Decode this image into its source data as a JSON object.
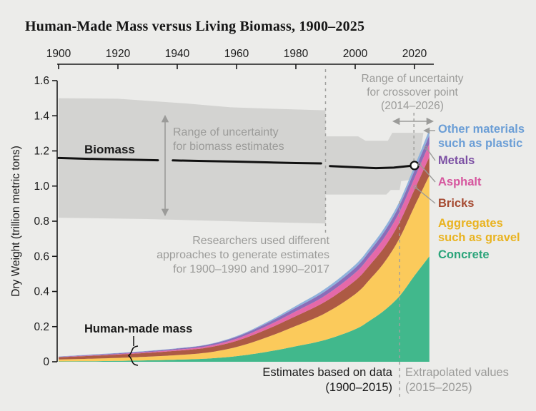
{
  "colors": {
    "background": "#ececea",
    "band_gray": "#d3d3d1",
    "annotation_gray": "#9b9b99",
    "axis_black": "#1a1a1a",
    "dashed_gray": "#a0a09e",
    "leader_gray": "#9b9b99",
    "biomass_line": "#111111",
    "crossover_marker_fill": "#ffffff"
  },
  "chart_data": {
    "type": "area",
    "title": "Human-Made Mass versus Living Biomass, 1900–2025",
    "xlabel": "",
    "ylabel": "Dry Weight (trillion metric tons)",
    "xlim": [
      1900,
      2026
    ],
    "ylim": [
      0,
      1.6
    ],
    "x_ticks": [
      1900,
      1920,
      1940,
      1960,
      1980,
      2000,
      2020
    ],
    "y_ticks": [
      {
        "value": 0,
        "label": "0"
      },
      {
        "value": 0.2,
        "label": "0.2"
      },
      {
        "value": 0.4,
        "label": "0.4"
      },
      {
        "value": 0.6,
        "label": "0.6"
      },
      {
        "value": 0.8,
        "label": "0.8"
      },
      {
        "value": 1.0,
        "label": "1.0"
      },
      {
        "value": 1.2,
        "label": "1.2"
      },
      {
        "value": 1.4,
        "label": "1.4"
      },
      {
        "value": 1.6,
        "label": "1.6"
      }
    ],
    "x": [
      1900,
      1910,
      1920,
      1930,
      1940,
      1950,
      1960,
      1970,
      1980,
      1990,
      2000,
      2005,
      2010,
      2015,
      2020,
      2025
    ],
    "series": [
      {
        "name": "Concrete",
        "color": "#41b88c",
        "label_color": "#2aa47a",
        "values": [
          0.002,
          0.003,
          0.005,
          0.008,
          0.012,
          0.018,
          0.032,
          0.056,
          0.088,
          0.125,
          0.185,
          0.235,
          0.295,
          0.375,
          0.49,
          0.6
        ]
      },
      {
        "name": "Aggregates such as gravel",
        "color": "#fbca5b",
        "label_color": "#e9b320",
        "values": [
          0.011,
          0.014,
          0.017,
          0.021,
          0.026,
          0.034,
          0.052,
          0.082,
          0.116,
          0.152,
          0.2,
          0.235,
          0.275,
          0.33,
          0.395,
          0.46
        ]
      },
      {
        "name": "Bricks",
        "color": "#ad5a44",
        "label_color": "#a54a31",
        "values": [
          0.013,
          0.016,
          0.019,
          0.022,
          0.025,
          0.028,
          0.035,
          0.045,
          0.056,
          0.066,
          0.077,
          0.082,
          0.086,
          0.09,
          0.095,
          0.105
        ]
      },
      {
        "name": "Asphalt",
        "color": "#e569a9",
        "label_color": "#d6569e",
        "values": [
          0.001,
          0.002,
          0.003,
          0.004,
          0.006,
          0.008,
          0.012,
          0.019,
          0.027,
          0.035,
          0.044,
          0.049,
          0.055,
          0.06,
          0.066,
          0.075
        ]
      },
      {
        "name": "Metals",
        "color": "#8a6db8",
        "label_color": "#7b4fa3",
        "values": [
          0.002,
          0.003,
          0.004,
          0.005,
          0.006,
          0.008,
          0.011,
          0.015,
          0.02,
          0.024,
          0.028,
          0.031,
          0.034,
          0.037,
          0.042,
          0.048
        ]
      },
      {
        "name": "Other materials such as plastic",
        "color": "#8fb1dc",
        "label_color": "#6b9ed6",
        "values": [
          0.001,
          0.002,
          0.002,
          0.002,
          0.002,
          0.002,
          0.004,
          0.007,
          0.011,
          0.015,
          0.018,
          0.019,
          0.021,
          0.023,
          0.026,
          0.032
        ]
      }
    ],
    "biomass_line_segments": [
      [
        [
          1900,
          1.16
        ],
        [
          1912,
          1.154
        ],
        [
          1924,
          1.15
        ],
        [
          1933.5,
          1.147
        ]
      ],
      [
        [
          1938.5,
          1.146
        ],
        [
          1950,
          1.142
        ],
        [
          1960,
          1.139
        ],
        [
          1970,
          1.135
        ],
        [
          1980,
          1.131
        ],
        [
          1988.5,
          1.129
        ]
      ],
      [
        [
          1991.5,
          1.114
        ],
        [
          2000,
          1.107
        ],
        [
          2007,
          1.102
        ],
        [
          2013,
          1.105
        ],
        [
          2020,
          1.117
        ]
      ]
    ],
    "crossover_point": {
      "year": 2020,
      "value": 1.117
    },
    "uncertainty_band_1900_1990": {
      "top": [
        [
          1900,
          1.5
        ],
        [
          1920,
          1.497
        ],
        [
          1943,
          1.47
        ],
        [
          1958,
          1.448
        ],
        [
          1972,
          1.44
        ],
        [
          1990,
          1.431
        ]
      ],
      "bottom": [
        [
          1900,
          0.82
        ],
        [
          1930,
          0.812
        ],
        [
          1962,
          0.798
        ],
        [
          1990,
          0.787
        ]
      ]
    },
    "uncertainty_band_1990_2017": {
      "polygon": [
        [
          1990,
          1.283
        ],
        [
          2001,
          1.283
        ],
        [
          2003.5,
          1.258
        ],
        [
          2011,
          1.258
        ],
        [
          2012.5,
          1.303
        ],
        [
          2023,
          1.303
        ],
        [
          2020.5,
          1.04
        ],
        [
          2015.5,
          1.028
        ],
        [
          2015,
          0.978
        ],
        [
          2012,
          0.978
        ],
        [
          2010.5,
          0.952
        ],
        [
          1990,
          0.952
        ]
      ]
    },
    "dashed_lines": {
      "methodology_year": 1990,
      "extrapolation_year": 2015,
      "crossover_year": 2019.8
    }
  },
  "annotations": {
    "biomass_label": "Biomass",
    "human_made_label": "Human-made mass",
    "biomass_uncertainty": {
      "lines": [
        "Range of uncertainty",
        "for biomass estimates"
      ]
    },
    "crossover_uncertainty": {
      "lines": [
        "Range of uncertainty",
        "for crossover point",
        "(2014–2026)"
      ]
    },
    "methodology": {
      "lines": [
        "Researchers used different",
        "approaches to generate estimates",
        "for 1900–1990 and 1990–2017"
      ]
    },
    "estimates": {
      "lines": [
        "Estimates based on data",
        "(1900–2015)"
      ]
    },
    "extrapolated": {
      "lines": [
        "Extrapolated values",
        "(2015–2025)"
      ]
    }
  },
  "legend": {
    "items": [
      {
        "id": "other",
        "lines": [
          "Other materials",
          "such as plastic"
        ],
        "color": "#6b9ed6"
      },
      {
        "id": "metals",
        "lines": [
          "Metals"
        ],
        "color": "#7b4fa3"
      },
      {
        "id": "asphalt",
        "lines": [
          "Asphalt"
        ],
        "color": "#d6569e"
      },
      {
        "id": "bricks",
        "lines": [
          "Bricks"
        ],
        "color": "#a54a31"
      },
      {
        "id": "aggregates",
        "lines": [
          "Aggregates",
          "such as gravel"
        ],
        "color": "#e9b320"
      },
      {
        "id": "concrete",
        "lines": [
          "Concrete"
        ],
        "color": "#2aa47a"
      }
    ]
  }
}
